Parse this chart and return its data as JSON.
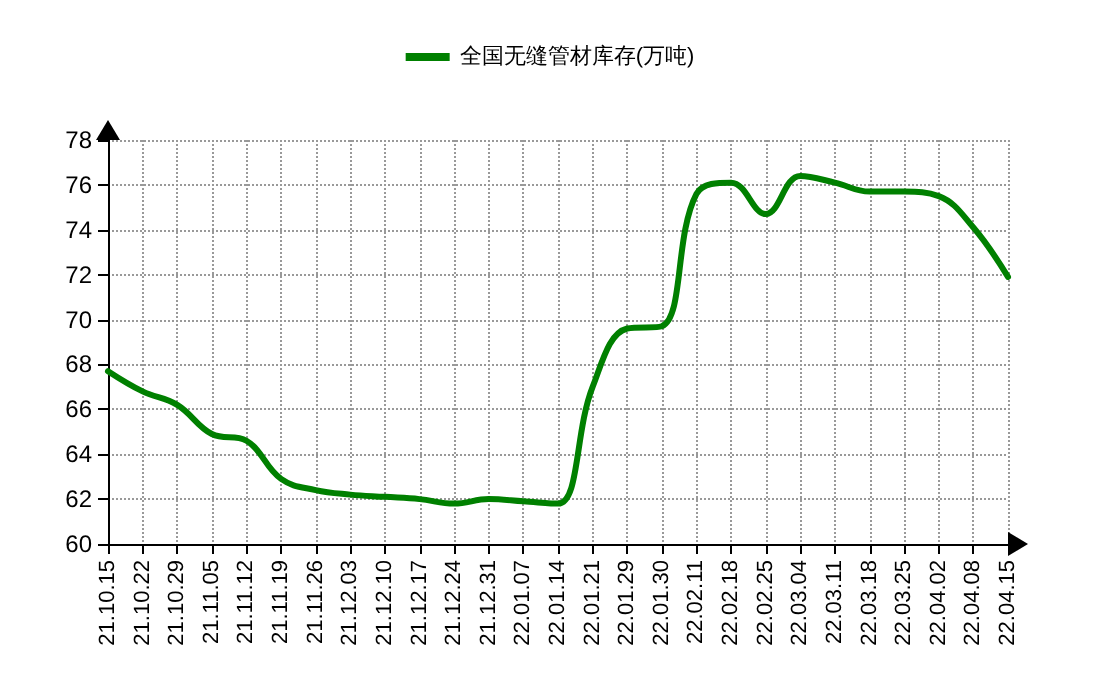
{
  "chart_data": {
    "type": "line",
    "categories": [
      "21.10.15",
      "21.10.22",
      "21.10.29",
      "21.11.05",
      "21.11.12",
      "21.11.19",
      "21.11.26",
      "21.12.03",
      "21.12.10",
      "21.12.17",
      "21.12.24",
      "21.12.31",
      "22.01.07",
      "22.01.14",
      "22.01.21",
      "22.01.29",
      "22.01.30",
      "22.02.11",
      "22.02.18",
      "22.02.25",
      "22.03.04",
      "22.03.11",
      "22.03.18",
      "22.03.25",
      "22.04.02",
      "22.04.08",
      "22.04.15"
    ],
    "series": [
      {
        "name": "全国无缝管材库存(万吨)",
        "color": "#008000",
        "values": [
          67.7,
          66.8,
          66.2,
          64.9,
          64.6,
          62.9,
          62.4,
          62.2,
          62.1,
          62.0,
          61.8,
          62.0,
          61.9,
          61.8,
          67.0,
          69.6,
          69.7,
          75.6,
          76.1,
          74.7,
          76.4,
          76.1,
          75.7,
          75.7,
          75.5,
          74.1,
          71.9
        ]
      }
    ],
    "ylim": [
      60,
      78
    ],
    "yticks": [
      60,
      62,
      64,
      66,
      68,
      70,
      72,
      74,
      76,
      78
    ],
    "grid": true,
    "legend": "top",
    "marker": "none",
    "line_style": "solid"
  }
}
